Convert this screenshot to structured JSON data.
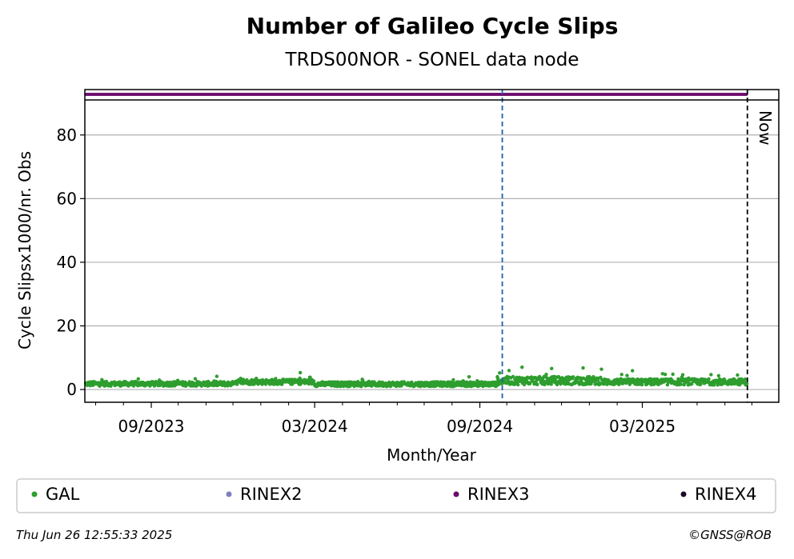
{
  "chart_data": {
    "type": "scatter",
    "title": "Number of Galileo Cycle Slips",
    "subtitle": "TRDS00NOR - SONEL data node",
    "xlabel": "Month/Year",
    "ylabel": "Cycle Slipsx1000/nr. Obs",
    "ylim": [
      -4,
      91
    ],
    "yticks": [
      0,
      20,
      40,
      60,
      80
    ],
    "xlim": [
      "2023-06-19",
      "2025-07-31"
    ],
    "xticks": [
      {
        "date": "2023-09-01",
        "label": "09/2023"
      },
      {
        "date": "2024-03-01",
        "label": "03/2024"
      },
      {
        "date": "2024-09-01",
        "label": "09/2024"
      },
      {
        "date": "2025-03-01",
        "label": "03/2025"
      }
    ],
    "minor_tick_months": [
      "2023-07-01",
      "2023-08-01",
      "2023-10-01",
      "2023-11-01",
      "2023-12-01",
      "2024-01-01",
      "2024-02-01",
      "2024-04-01",
      "2024-05-01",
      "2024-06-01",
      "2024-07-01",
      "2024-08-01",
      "2024-10-01",
      "2024-11-01",
      "2024-12-01",
      "2025-01-01",
      "2025-02-01",
      "2025-04-01",
      "2025-05-01",
      "2025-06-01",
      "2025-07-01"
    ],
    "grid": true,
    "vlines": [
      {
        "date": "2024-09-26",
        "color": "#1f5fae",
        "style": "dashed"
      },
      {
        "date": "2025-06-26",
        "color": "#000000",
        "style": "dashed",
        "label": "Now"
      }
    ],
    "rinex_band": {
      "series": "RINEX3",
      "start": "2023-06-20",
      "end": "2025-06-25",
      "color": "#6b0a6b"
    },
    "series": [
      {
        "name": "GAL",
        "color": "#2e9e2e",
        "x_start": "2023-06-20",
        "x_end": "2025-06-25",
        "segments": [
          {
            "from": "2023-06-20",
            "to": "2023-12-01",
            "base": 1.8,
            "spread": 0.9
          },
          {
            "from": "2023-12-01",
            "to": "2024-03-01",
            "base": 2.4,
            "spread": 1.0
          },
          {
            "from": "2024-03-01",
            "to": "2024-09-20",
            "base": 1.7,
            "spread": 0.9
          },
          {
            "from": "2024-09-20",
            "to": "2025-01-15",
            "base": 2.8,
            "spread": 1.6
          },
          {
            "from": "2025-01-15",
            "to": "2025-06-25",
            "base": 2.4,
            "spread": 1.2
          }
        ],
        "peaks": [
          {
            "date": "2024-02-14",
            "value": 5.3
          },
          {
            "date": "2024-10-18",
            "value": 7.0
          },
          {
            "date": "2024-11-20",
            "value": 6.6
          },
          {
            "date": "2024-12-25",
            "value": 6.8
          },
          {
            "date": "2025-02-18",
            "value": 5.9
          },
          {
            "date": "2025-04-04",
            "value": 4.8
          },
          {
            "date": "2024-08-20",
            "value": 4.0
          }
        ]
      }
    ],
    "legend": {
      "placement": "bottom",
      "entries": [
        {
          "name": "GAL",
          "color": "#2e9e2e"
        },
        {
          "name": "RINEX2",
          "color": "#7f7fbf"
        },
        {
          "name": "RINEX3",
          "color": "#6b0a6b"
        },
        {
          "name": "RINEX4",
          "color": "#1a0a2a"
        }
      ]
    },
    "now_label": "Now"
  },
  "footer": {
    "timestamp": "Thu Jun 26 12:55:33 2025",
    "credit": "©GNSS@ROB"
  }
}
